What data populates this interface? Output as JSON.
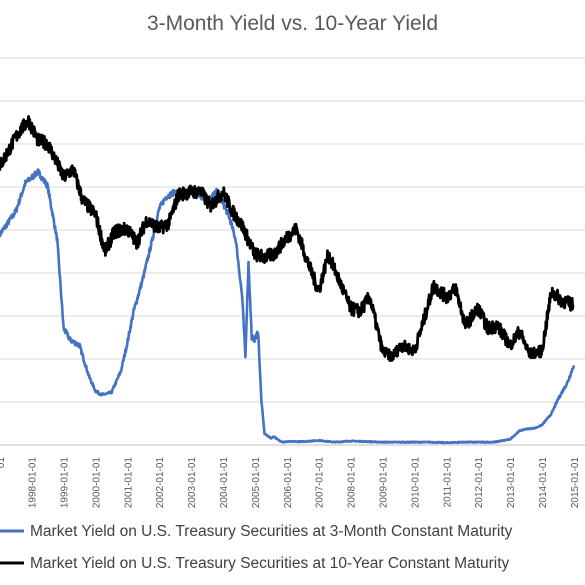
{
  "chart_data": {
    "type": "line",
    "title": "3-Month Yield vs. 10-Year Yield",
    "xlabel": "",
    "ylabel": "",
    "x_tick_labels": [
      "1998-01-01",
      "1999-01-01",
      "2000-01-01",
      "2001-01-01",
      "2002-01-01",
      "2003-01-01",
      "2004-01-01",
      "2005-01-01",
      "2006-01-01",
      "2007-01-01",
      "2008-01-01",
      "2009-01-01",
      "2010-01-01",
      "2011-01-01",
      "2012-01-01",
      "2013-01-01",
      "2014-01-01",
      "2015-01-01"
    ],
    "grid": true,
    "legend_position": "bottom",
    "series": [
      {
        "name": "Market Yield on U.S. Treasury Securities at 3-Month Constant Maturity",
        "color": "#4472c4",
        "x": [
          1997.0,
          1997.5,
          1997.8,
          1998.0,
          1998.2,
          1998.5,
          1998.8,
          1999.0,
          1999.2,
          1999.5,
          1999.8,
          2000.0,
          2000.2,
          2000.5,
          2000.8,
          2001.0,
          2001.2,
          2001.5,
          2001.8,
          2002.0,
          2002.2,
          2002.5,
          2002.8,
          2003.0,
          2003.2,
          2003.5,
          2003.8,
          2004.0,
          2004.2,
          2004.4,
          2004.6,
          2004.7,
          2004.8,
          2004.9,
          2005.0,
          2005.1,
          2005.2,
          2005.3,
          2005.5,
          2005.6,
          2005.7,
          2005.8,
          2005.9,
          2006.0,
          2006.5,
          2007.0,
          2007.5,
          2008.0,
          2008.5,
          2009.0,
          2009.5,
          2010.0,
          2010.5,
          2011.0,
          2011.5,
          2012.0,
          2012.5,
          2013.0,
          2013.3,
          2013.5,
          2013.8,
          2014.0,
          2014.3,
          2014.5,
          2014.8,
          2015.0
        ],
        "y": [
          3.7,
          4.1,
          4.6,
          4.7,
          4.8,
          4.55,
          3.6,
          2.05,
          1.85,
          1.75,
          1.2,
          0.95,
          0.88,
          0.92,
          1.3,
          1.8,
          2.35,
          2.95,
          3.65,
          4.15,
          4.35,
          4.45,
          4.35,
          4.45,
          4.4,
          4.3,
          4.45,
          4.25,
          4.0,
          3.6,
          2.6,
          1.55,
          3.2,
          1.9,
          1.85,
          2.0,
          0.8,
          0.2,
          0.12,
          0.15,
          0.1,
          0.07,
          0.05,
          0.06,
          0.06,
          0.08,
          0.05,
          0.07,
          0.06,
          0.05,
          0.05,
          0.05,
          0.05,
          0.04,
          0.05,
          0.05,
          0.05,
          0.1,
          0.25,
          0.28,
          0.3,
          0.35,
          0.55,
          0.8,
          1.1,
          1.4
        ]
      },
      {
        "name": "Market Yield on U.S. Treasury Securities at 10-Year Constant Maturity",
        "color": "#000000",
        "x": [
          1997.0,
          1997.3,
          1997.6,
          1997.9,
          1998.2,
          1998.5,
          1998.8,
          1999.0,
          1999.3,
          1999.6,
          2000.0,
          2000.3,
          2000.6,
          2001.0,
          2001.3,
          2001.6,
          2002.0,
          2002.3,
          2002.6,
          2003.0,
          2003.3,
          2003.6,
          2004.0,
          2004.3,
          2004.6,
          2005.0,
          2005.3,
          2005.6,
          2006.0,
          2006.3,
          2006.6,
          2007.0,
          2007.3,
          2007.6,
          2008.0,
          2008.3,
          2008.6,
          2009.0,
          2009.3,
          2009.6,
          2010.0,
          2010.3,
          2010.6,
          2011.0,
          2011.3,
          2011.6,
          2012.0,
          2012.3,
          2012.6,
          2013.0,
          2013.3,
          2013.6,
          2014.0,
          2014.3,
          2014.6,
          2015.0
        ],
        "y": [
          4.9,
          5.2,
          5.5,
          5.7,
          5.35,
          5.3,
          4.95,
          4.7,
          4.85,
          4.3,
          4.05,
          3.4,
          3.75,
          3.8,
          3.55,
          3.95,
          3.8,
          3.9,
          4.4,
          4.45,
          4.45,
          4.2,
          4.45,
          4.1,
          3.85,
          3.35,
          3.3,
          3.35,
          3.65,
          3.8,
          3.3,
          2.7,
          3.35,
          2.95,
          2.4,
          2.35,
          2.6,
          1.65,
          1.55,
          1.75,
          1.65,
          2.2,
          2.8,
          2.6,
          2.75,
          2.1,
          2.4,
          2.05,
          2.1,
          1.75,
          2.0,
          1.6,
          1.65,
          2.7,
          2.55,
          2.45
        ]
      }
    ]
  }
}
